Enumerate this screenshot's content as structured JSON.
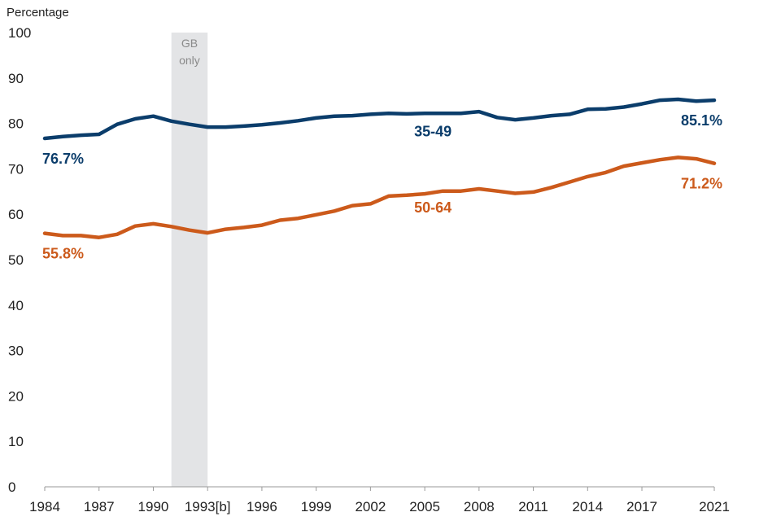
{
  "chart_data": {
    "type": "line",
    "ylabel": "Percentage",
    "ylim": [
      0,
      100
    ],
    "yticks": [
      0,
      10,
      20,
      30,
      40,
      50,
      60,
      70,
      80,
      90,
      100
    ],
    "xlim": [
      1984,
      2021
    ],
    "xticks": [
      {
        "value": 1984,
        "label": "1984"
      },
      {
        "value": 1987,
        "label": "1987"
      },
      {
        "value": 1990,
        "label": "1990"
      },
      {
        "value": 1993,
        "label": "1993[b]"
      },
      {
        "value": 1996,
        "label": "1996"
      },
      {
        "value": 1999,
        "label": "1999"
      },
      {
        "value": 2002,
        "label": "2002"
      },
      {
        "value": 2005,
        "label": "2005"
      },
      {
        "value": 2008,
        "label": "2008"
      },
      {
        "value": 2011,
        "label": "2011"
      },
      {
        "value": 2014,
        "label": "2014"
      },
      {
        "value": 2017,
        "label": "2017"
      },
      {
        "value": 2021,
        "label": "2021"
      }
    ],
    "band": {
      "from": 1991,
      "to": 1993,
      "line1": "GB",
      "line2": "only",
      "color": "#e3e4e6"
    },
    "series": [
      {
        "name": "35-49",
        "color": "#0b3d6b",
        "start_label": "76.7%",
        "end_label": "85.1%",
        "name_label_at": {
          "year": 2005,
          "value": 78.2
        },
        "x": [
          1984,
          1985,
          1986,
          1987,
          1988,
          1989,
          1990,
          1991,
          1992,
          1993,
          1994,
          1995,
          1996,
          1997,
          1998,
          1999,
          2000,
          2001,
          2002,
          2003,
          2004,
          2005,
          2006,
          2007,
          2008,
          2009,
          2010,
          2011,
          2012,
          2013,
          2014,
          2015,
          2016,
          2017,
          2018,
          2019,
          2020,
          2021
        ],
        "values": [
          76.7,
          77.1,
          77.4,
          77.6,
          79.8,
          81.0,
          81.6,
          80.5,
          79.8,
          79.2,
          79.2,
          79.4,
          79.7,
          80.1,
          80.6,
          81.2,
          81.6,
          81.7,
          82.0,
          82.2,
          82.1,
          82.2,
          82.2,
          82.2,
          82.6,
          81.3,
          80.8,
          81.2,
          81.7,
          82.0,
          83.1,
          83.2,
          83.6,
          84.3,
          85.1,
          85.3,
          84.9,
          85.1
        ]
      },
      {
        "name": "50-64",
        "color": "#cc5a1b",
        "start_label": "55.8%",
        "end_label": "71.2%",
        "name_label_at": {
          "year": 2005,
          "value": 61.5
        },
        "x": [
          1984,
          1985,
          1986,
          1987,
          1988,
          1989,
          1990,
          1991,
          1992,
          1993,
          1994,
          1995,
          1996,
          1997,
          1998,
          1999,
          2000,
          2001,
          2002,
          2003,
          2004,
          2005,
          2006,
          2007,
          2008,
          2009,
          2010,
          2011,
          2012,
          2013,
          2014,
          2015,
          2016,
          2017,
          2018,
          2019,
          2020,
          2021
        ],
        "values": [
          55.8,
          55.3,
          55.3,
          54.9,
          55.6,
          57.4,
          57.9,
          57.3,
          56.5,
          55.9,
          56.7,
          57.1,
          57.6,
          58.7,
          59.1,
          59.9,
          60.7,
          61.9,
          62.3,
          64.0,
          64.2,
          64.5,
          65.1,
          65.1,
          65.6,
          65.1,
          64.6,
          64.9,
          65.9,
          67.1,
          68.3,
          69.2,
          70.6,
          71.3,
          72.0,
          72.5,
          72.2,
          71.2
        ]
      }
    ]
  }
}
